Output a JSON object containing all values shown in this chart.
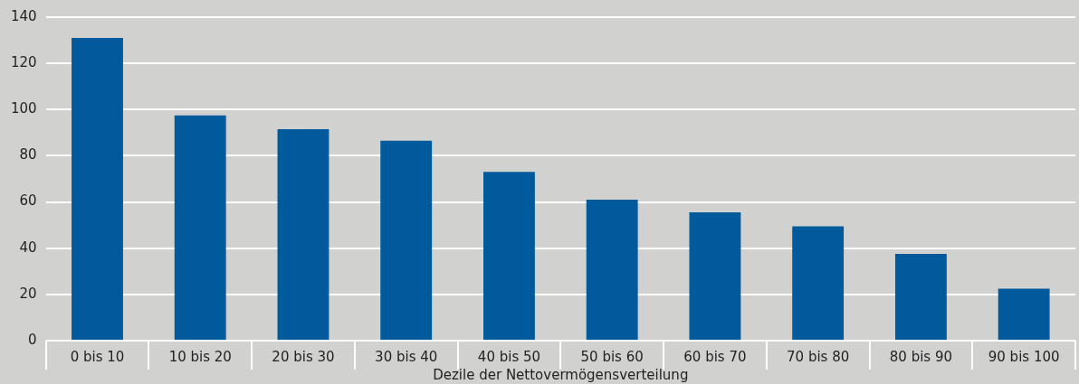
{
  "chart_data": {
    "type": "bar",
    "xlabel": "Dezile der Nettovermögensverteilung",
    "categories": [
      "0 bis 10",
      "10 bis 20",
      "20 bis 30",
      "30 bis 40",
      "40 bis 50",
      "50 bis 60",
      "60 bis 70",
      "70 bis 80",
      "80 bis 90",
      "90 bis 100"
    ],
    "values": [
      131,
      97.5,
      91.5,
      86.5,
      73,
      61,
      55.5,
      49.5,
      37.5,
      22.5
    ],
    "color": "#005a9c",
    "ylim": [
      0,
      140
    ],
    "yticks": [
      0,
      20,
      40,
      60,
      80,
      100,
      120,
      140
    ],
    "grid": "y"
  }
}
